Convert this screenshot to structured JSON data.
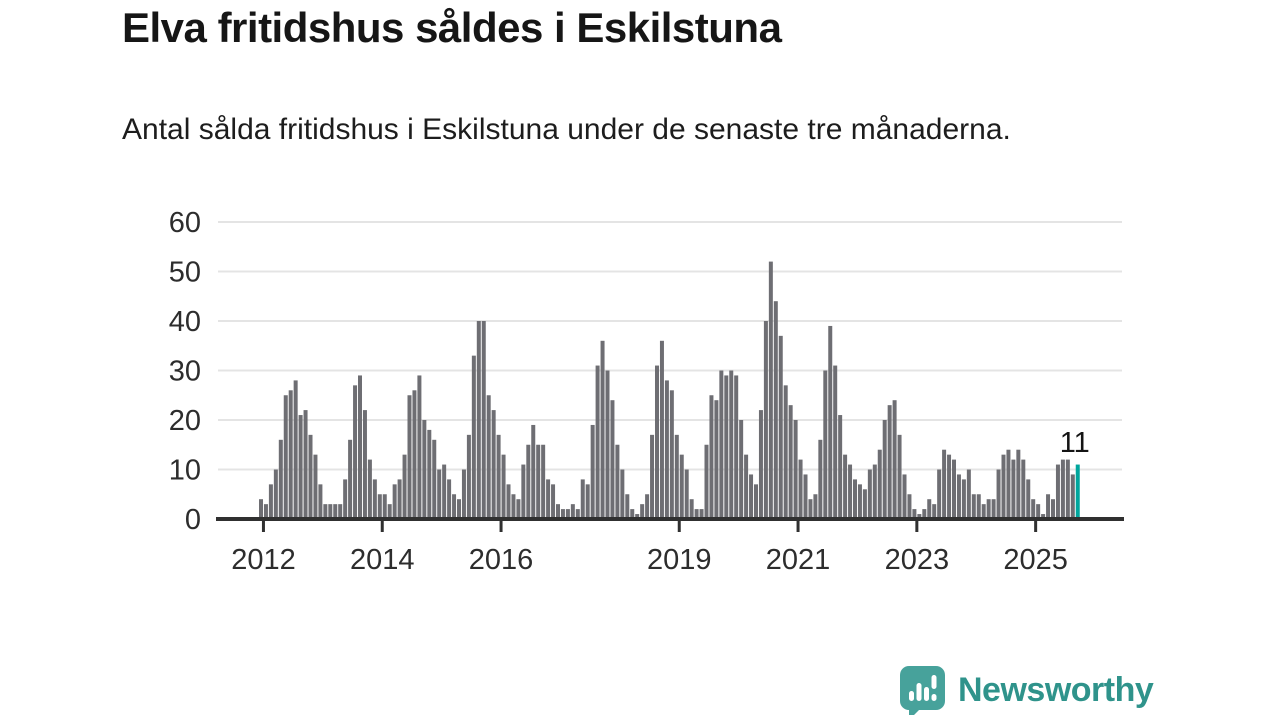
{
  "title": "Elva fritidshus såldes i Eskilstuna",
  "subtitle": "Antal sålda fritidshus i Eskilstuna under de senaste tre månaderna.",
  "branding": {
    "name": "Newsworthy",
    "icon": "newsworthy-speech-bubble-chart-icon",
    "teal": "#2f938b",
    "icon_fill": "#47a29b"
  },
  "colors": {
    "bar": "#6e6e73",
    "highlight": "#00a69d",
    "grid": "#e4e4e4",
    "axis": "#303030",
    "axis_text": "#2d2d2d",
    "annotation_text": "#141414"
  },
  "chart_data": {
    "type": "bar",
    "title": "Elva fritidshus såldes i Eskilstuna",
    "subtitle": "Antal sålda fritidshus i Eskilstuna under de senaste tre månaderna.",
    "ylabel": "",
    "xlabel": "",
    "ylim": [
      0,
      60
    ],
    "grid": true,
    "y_ticks": [
      0,
      10,
      20,
      30,
      40,
      50,
      60
    ],
    "x_ticks": [
      {
        "label": "2012",
        "index": 1
      },
      {
        "label": "2014",
        "index": 25
      },
      {
        "label": "2016",
        "index": 49
      },
      {
        "label": "2019",
        "index": 85
      },
      {
        "label": "2021",
        "index": 109
      },
      {
        "label": "2023",
        "index": 133
      },
      {
        "label": "2025",
        "index": 157
      }
    ],
    "values": [
      4,
      3,
      7,
      10,
      16,
      25,
      26,
      28,
      21,
      22,
      17,
      13,
      7,
      3,
      3,
      3,
      3,
      8,
      16,
      27,
      29,
      22,
      12,
      8,
      5,
      5,
      3,
      7,
      8,
      13,
      25,
      26,
      29,
      20,
      18,
      16,
      10,
      11,
      8,
      5,
      4,
      10,
      17,
      33,
      40,
      40,
      25,
      22,
      17,
      13,
      7,
      5,
      4,
      11,
      15,
      19,
      15,
      15,
      8,
      7,
      3,
      2,
      2,
      3,
      2,
      8,
      7,
      19,
      31,
      36,
      30,
      24,
      15,
      10,
      5,
      2,
      1,
      3,
      5,
      17,
      31,
      36,
      28,
      26,
      17,
      13,
      10,
      4,
      2,
      2,
      15,
      25,
      24,
      30,
      29,
      30,
      29,
      20,
      13,
      9,
      7,
      22,
      40,
      52,
      44,
      37,
      27,
      23,
      20,
      12,
      9,
      4,
      5,
      16,
      30,
      39,
      31,
      21,
      13,
      11,
      8,
      7,
      6,
      10,
      11,
      14,
      20,
      23,
      24,
      17,
      9,
      5,
      2,
      1,
      2,
      4,
      3,
      10,
      14,
      13,
      12,
      9,
      8,
      10,
      5,
      5,
      3,
      4,
      4,
      10,
      13,
      14,
      12,
      14,
      12,
      8,
      4,
      3,
      1,
      5,
      4,
      11,
      12,
      12,
      9,
      11
    ],
    "highlight_index": 165,
    "highlight_value": 11,
    "highlight_label": "11",
    "legend": null
  }
}
